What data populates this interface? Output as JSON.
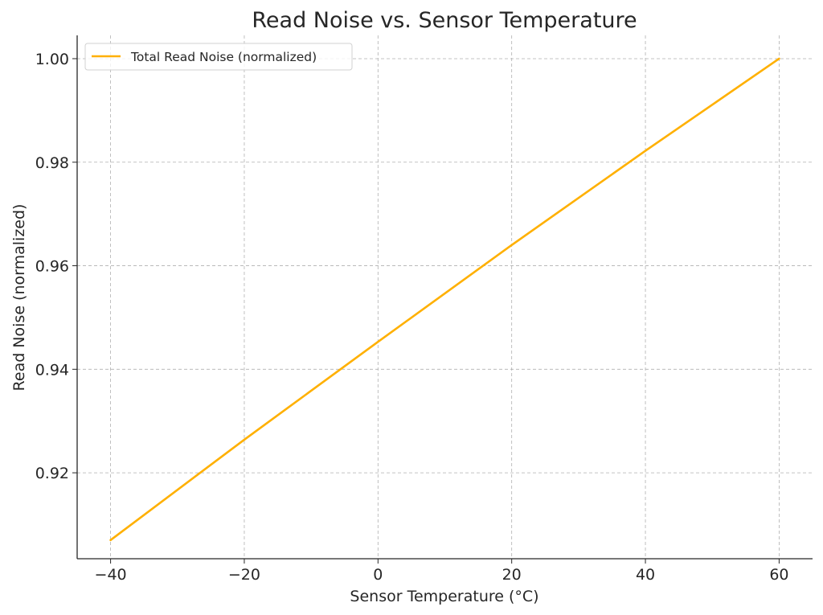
{
  "chart_data": {
    "type": "line",
    "title": "Read Noise vs. Sensor Temperature",
    "xlabel": "Sensor Temperature (°C)",
    "ylabel": "Read Noise (normalized)",
    "xlim": [
      -45,
      65
    ],
    "ylim": [
      0.9034,
      1.0045
    ],
    "x_ticks": [
      -40,
      -20,
      0,
      20,
      40,
      60
    ],
    "x_tick_labels": [
      "−40",
      "−20",
      "0",
      "20",
      "40",
      "60"
    ],
    "y_ticks": [
      0.92,
      0.94,
      0.96,
      0.98,
      1.0
    ],
    "y_tick_labels": [
      "0.92",
      "0.94",
      "0.96",
      "0.98",
      "1.00"
    ],
    "grid": true,
    "legend_position": "top-left",
    "series": [
      {
        "name": "Total Read Noise (normalized)",
        "color": "#FFB000",
        "x": [
          -40,
          -20,
          0,
          20,
          40,
          60
        ],
        "y": [
          0.907,
          0.9264,
          0.9453,
          0.964,
          0.9822,
          1.0
        ]
      }
    ]
  }
}
